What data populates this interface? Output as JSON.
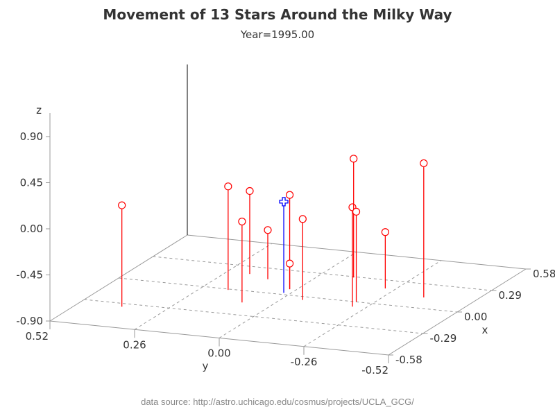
{
  "chart_data": {
    "type": "scatter3d-needle",
    "title": "Movement of 13 Stars Around the Milky Way",
    "subtitle": "Year=1995.00",
    "xlabel": "x",
    "ylabel": "y",
    "zlabel": "z",
    "xlim": [
      -0.58,
      0.58
    ],
    "ylim": [
      -0.52,
      0.52
    ],
    "zlim": [
      -0.9,
      0.9
    ],
    "xticks": [
      "-0.58",
      "-0.29",
      "0.00",
      "0.29",
      "0.58"
    ],
    "yticks": [
      "0.52",
      "0.26",
      "0.00",
      "-0.26",
      "-0.52"
    ],
    "zticks": [
      "-0.90",
      "-0.45",
      "0.00",
      "0.45",
      "0.90"
    ],
    "grid": true,
    "colors": {
      "star": "#ff0000",
      "center": "#0000ff",
      "axis": "#999999",
      "grid": "#999999"
    },
    "points": [
      {
        "x": -0.33,
        "y": 0.39,
        "z": 0.09,
        "kind": "star"
      },
      {
        "x": -0.01,
        "y": 0.18,
        "z": 0.11,
        "kind": "star"
      },
      {
        "x": -0.14,
        "y": 0.09,
        "z": -0.11,
        "kind": "star"
      },
      {
        "x": 0.2,
        "y": 0.19,
        "z": -0.09,
        "kind": "star"
      },
      {
        "x": 0.16,
        "y": 0.12,
        "z": -0.42,
        "kind": "star"
      },
      {
        "x": 0.02,
        "y": 0.02,
        "z": -0.01,
        "kind": "center"
      },
      {
        "x": 0.07,
        "y": 0.02,
        "z": 0.02,
        "kind": "star"
      },
      {
        "x": 0.07,
        "y": 0.02,
        "z": -0.65,
        "kind": "star"
      },
      {
        "x": -0.04,
        "y": -0.06,
        "z": -0.11,
        "kind": "star"
      },
      {
        "x": -0.06,
        "y": -0.22,
        "z": 0.07,
        "kind": "star"
      },
      {
        "x": 0.28,
        "y": -0.1,
        "z": 0.26,
        "kind": "star"
      },
      {
        "x": 0.0,
        "y": -0.21,
        "z": -0.02,
        "kind": "star"
      },
      {
        "x": 0.19,
        "y": -0.23,
        "z": -0.35,
        "kind": "star"
      },
      {
        "x": 0.13,
        "y": -0.37,
        "z": 0.41,
        "kind": "star"
      }
    ]
  },
  "footer": "data source: http://astro.uchicago.edu/cosmus/projects/UCLA_GCG/"
}
